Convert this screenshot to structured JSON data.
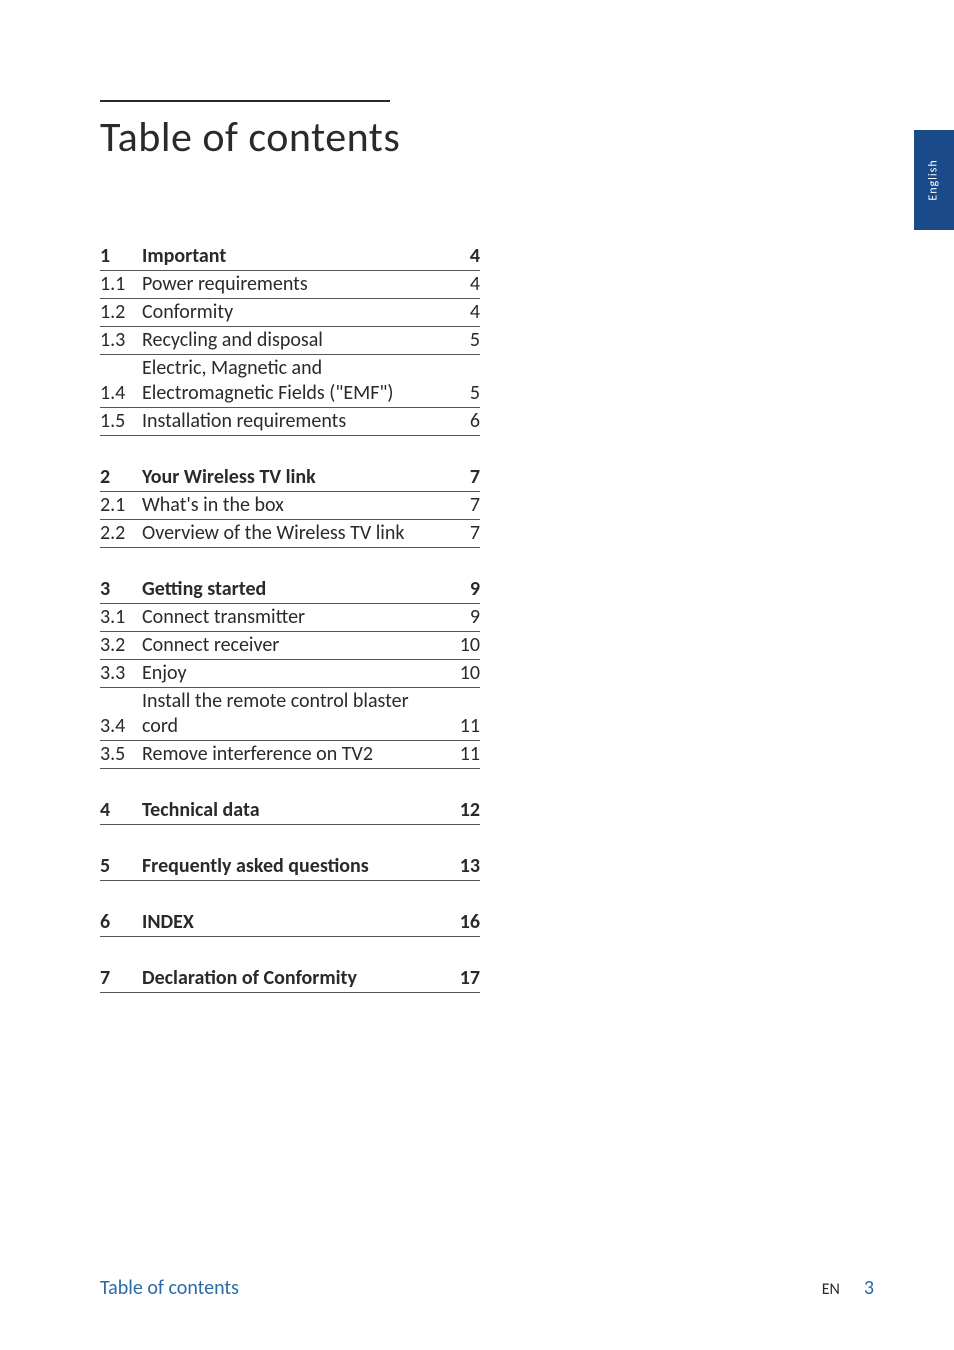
{
  "title": "Table of contents",
  "tab_label": "English",
  "colors": {
    "text": "#2a2a2a",
    "accent_blue": "#2a6aa8",
    "tab_bg": "#1a4a8a",
    "tab_text": "#ffffff",
    "rule": "#2a2a2a",
    "row_border": "#555555",
    "background": "#ffffff"
  },
  "typography": {
    "title_fontsize": 42,
    "row_fontsize": 20,
    "tab_fontsize": 12,
    "footer_fontsize": 20
  },
  "toc": [
    {
      "rows": [
        {
          "num": "1",
          "label": "Important",
          "page": "4",
          "bold": true
        },
        {
          "num": "1.1",
          "label": "Power requirements",
          "page": "4",
          "bold": false
        },
        {
          "num": "1.2",
          "label": "Conformity",
          "page": "4",
          "bold": false
        },
        {
          "num": "1.3",
          "label": "Recycling and disposal",
          "page": "5",
          "bold": false
        },
        {
          "num": "1.4",
          "label": "Electric, Magnetic and Electromagnetic Fields (\"EMF\")",
          "page": "5",
          "bold": false
        },
        {
          "num": "1.5",
          "label": "Installation requirements",
          "page": "6",
          "bold": false
        }
      ]
    },
    {
      "rows": [
        {
          "num": "2",
          "label": "Your Wireless TV link",
          "page": "7",
          "bold": true
        },
        {
          "num": "2.1",
          "label": "What's in the box",
          "page": "7",
          "bold": false
        },
        {
          "num": "2.2",
          "label": "Overview of the Wireless TV link",
          "page": "7",
          "bold": false
        }
      ]
    },
    {
      "rows": [
        {
          "num": "3",
          "label": "Getting started",
          "page": "9",
          "bold": true
        },
        {
          "num": "3.1",
          "label": "Connect transmitter",
          "page": "9",
          "bold": false
        },
        {
          "num": "3.2",
          "label": "Connect receiver",
          "page": "10",
          "bold": false
        },
        {
          "num": "3.3",
          "label": "Enjoy",
          "page": "10",
          "bold": false
        },
        {
          "num": "3.4",
          "label": "Install the remote control blaster cord",
          "page": "11",
          "bold": false
        },
        {
          "num": "3.5",
          "label": "Remove interference on TV2",
          "page": "11",
          "bold": false
        }
      ]
    },
    {
      "rows": [
        {
          "num": "4",
          "label": "Technical data",
          "page": "12",
          "bold": true
        }
      ]
    },
    {
      "rows": [
        {
          "num": "5",
          "label": "Frequently asked questions",
          "page": "13",
          "bold": true
        }
      ]
    },
    {
      "rows": [
        {
          "num": "6",
          "label": "INDEX",
          "page": "16",
          "bold": true
        }
      ]
    },
    {
      "rows": [
        {
          "num": "7",
          "label": "Declaration of Conformity",
          "page": "17",
          "bold": true
        }
      ]
    }
  ],
  "footer": {
    "left": "Table of contents",
    "lang": "EN",
    "page": "3"
  }
}
